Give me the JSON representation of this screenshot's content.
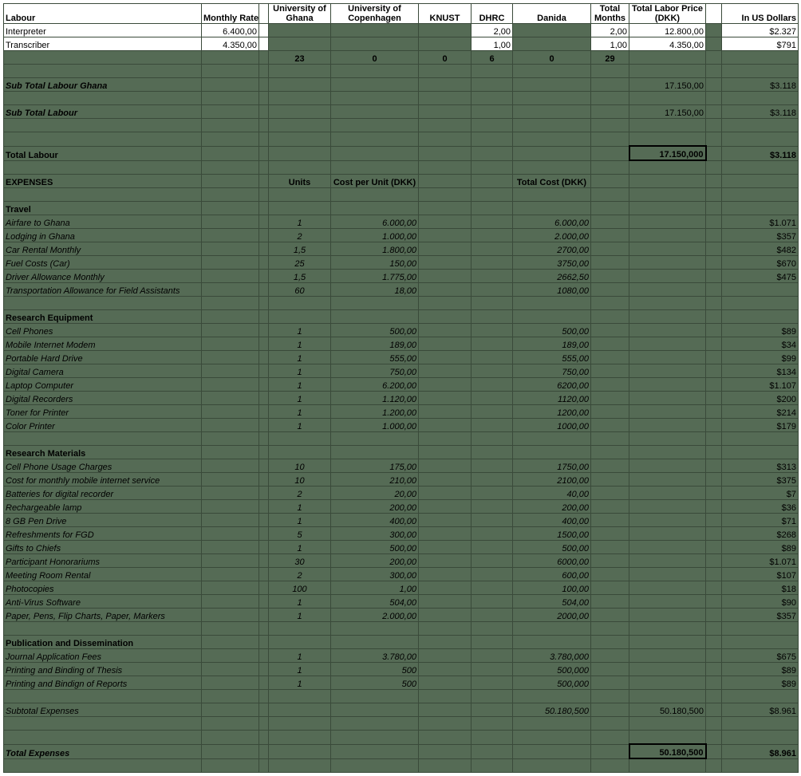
{
  "headers": {
    "labour": "Labour",
    "monthly_rate": "Monthly Rate",
    "ug": "University of Ghana",
    "uc": "University of Copenhagen",
    "knust": "KNUST",
    "dhrc": "DHRC",
    "danida": "Danida",
    "total_months": "Total Months",
    "total_labor_price": "Total Labor Price (DKK)",
    "usd": "In US Dollars"
  },
  "labour_rows": [
    {
      "label": "Interpreter",
      "rate": "6.400,00",
      "dhrc": "2,00",
      "months": "2,00",
      "price": "12.800,00",
      "usd": "$2.327"
    },
    {
      "label": "Transcriber",
      "rate": "4.350,00",
      "dhrc": "1,00",
      "months": "1,00",
      "price": "4.350,00",
      "usd": "$791"
    }
  ],
  "sum_row": {
    "ug": "23",
    "uc": "0",
    "knust": "0",
    "dhrc": "6",
    "danida": "0",
    "months": "29"
  },
  "subtotals": {
    "labour_ghana": {
      "label": "Sub Total  Labour Ghana",
      "price": "17.150,00",
      "usd": "$3.118"
    },
    "labour": {
      "label": "Sub Total Labour",
      "price": "17.150,00",
      "usd": "$3.118"
    },
    "total_labour": {
      "label": "Total Labour",
      "price": "17.150,000",
      "usd": "$3.118"
    },
    "subtotal_expenses": {
      "label": "Subtotal Expenses",
      "tcost": "50.180,500",
      "price": "50.180,500",
      "usd": "$8.961"
    },
    "total_expenses": {
      "label": "Total Expenses",
      "price": "50.180,500",
      "usd": "$8.961"
    }
  },
  "exp_headers": {
    "label": "EXPENSES",
    "units": "Units",
    "cpu": "Cost per Unit (DKK)",
    "tcost": "Total Cost (DKK)"
  },
  "sections": [
    {
      "title": "Travel",
      "rows": [
        {
          "label": "Airfare to Ghana",
          "units": "1",
          "cpu": "6.000,00",
          "tcost": "6.000,00",
          "usd": "$1.071"
        },
        {
          "label": "Lodging in Ghana",
          "units": "2",
          "cpu": "1.000,00",
          "tcost": "2.000,00",
          "usd": "$357"
        },
        {
          "label": "Car Rental Monthly",
          "units": "1,5",
          "cpu": "1.800,00",
          "tcost": "2700,00",
          "usd": "$482"
        },
        {
          "label": "Fuel Costs (Car)",
          "units": "25",
          "cpu": "150,00",
          "tcost": "3750,00",
          "usd": "$670"
        },
        {
          "label": "Driver Allowance Monthly",
          "units": "1,5",
          "cpu": "1.775,00",
          "tcost": "2662,50",
          "usd": "$475"
        },
        {
          "label": "Transportation Allowance for Field Assistants",
          "units": "60",
          "cpu": "18,00",
          "tcost": "1080,00",
          "usd": ""
        }
      ]
    },
    {
      "title": "Research Equipment",
      "rows": [
        {
          "label": "Cell Phones",
          "units": "1",
          "cpu": "500,00",
          "tcost": "500,00",
          "usd": "$89"
        },
        {
          "label": "Mobile Internet Modem",
          "units": "1",
          "cpu": "189,00",
          "tcost": "189,00",
          "usd": "$34"
        },
        {
          "label": "Portable Hard Drive",
          "units": "1",
          "cpu": "555,00",
          "tcost": "555,00",
          "usd": "$99"
        },
        {
          "label": "Digital Camera",
          "units": "1",
          "cpu": "750,00",
          "tcost": "750,00",
          "usd": "$134"
        },
        {
          "label": "Laptop Computer",
          "units": "1",
          "cpu": "6.200,00",
          "tcost": "6200,00",
          "usd": "$1.107"
        },
        {
          "label": "Digital Recorders",
          "units": "1",
          "cpu": "1.120,00",
          "tcost": "1120,00",
          "usd": "$200"
        },
        {
          "label": "Toner for Printer",
          "units": "1",
          "cpu": "1.200,00",
          "tcost": "1200,00",
          "usd": "$214"
        },
        {
          "label": "Color Printer",
          "units": "1",
          "cpu": "1.000,00",
          "tcost": "1000,00",
          "usd": "$179"
        }
      ]
    },
    {
      "title": "Research Materials",
      "rows": [
        {
          "label": "Cell Phone Usage Charges",
          "units": "10",
          "cpu": "175,00",
          "tcost": "1750,00",
          "usd": "$313"
        },
        {
          "label": "Cost for monthly mobile internet service",
          "units": "10",
          "cpu": "210,00",
          "tcost": "2100,00",
          "usd": "$375"
        },
        {
          "label": "Batteries for digital recorder",
          "units": "2",
          "cpu": "20,00",
          "tcost": "40,00",
          "usd": "$7"
        },
        {
          "label": "Rechargeable lamp",
          "units": "1",
          "cpu": "200,00",
          "tcost": "200,00",
          "usd": "$36"
        },
        {
          "label": "8 GB Pen Drive",
          "units": "1",
          "cpu": "400,00",
          "tcost": "400,00",
          "usd": "$71"
        },
        {
          "label": "Refreshments for FGD",
          "units": "5",
          "cpu": "300,00",
          "tcost": "1500,00",
          "usd": "$268"
        },
        {
          "label": "Gifts to Chiefs",
          "units": "1",
          "cpu": "500,00",
          "tcost": "500,00",
          "usd": "$89"
        },
        {
          "label": "Participant Honorariums",
          "units": "30",
          "cpu": "200,00",
          "tcost": "6000,00",
          "usd": "$1.071"
        },
        {
          "label": "Meeting Room Rental",
          "units": "2",
          "cpu": "300,00",
          "tcost": "600,00",
          "usd": "$107"
        },
        {
          "label": "Photocopies",
          "units": "100",
          "cpu": "1,00",
          "tcost": "100,00",
          "usd": "$18"
        },
        {
          "label": "Anti-Virus Software",
          "units": "1",
          "cpu": "504,00",
          "tcost": "504,00",
          "usd": "$90"
        },
        {
          "label": "Paper, Pens, Flip Charts, Paper, Markers",
          "units": "1",
          "cpu": "2.000,00",
          "tcost": "2000,00",
          "usd": "$357"
        }
      ]
    },
    {
      "title": "Publication and Dissemination",
      "rows": [
        {
          "label": "Journal Application Fees",
          "units": "1",
          "cpu": "3.780,00",
          "tcost": "3.780,000",
          "usd": "$675"
        },
        {
          "label": "Printing and Binding of Thesis",
          "units": "1",
          "cpu": "500",
          "tcost": "500,000",
          "usd": "$89"
        },
        {
          "label": "Printing and Bindign of Reports",
          "units": "1",
          "cpu": "500",
          "tcost": "500,000",
          "usd": "$89"
        }
      ]
    }
  ],
  "style": {
    "shade_bg": "#556b55",
    "border": "#3a4a3a",
    "text": "#000000",
    "white": "#ffffff",
    "font_size": 11
  }
}
